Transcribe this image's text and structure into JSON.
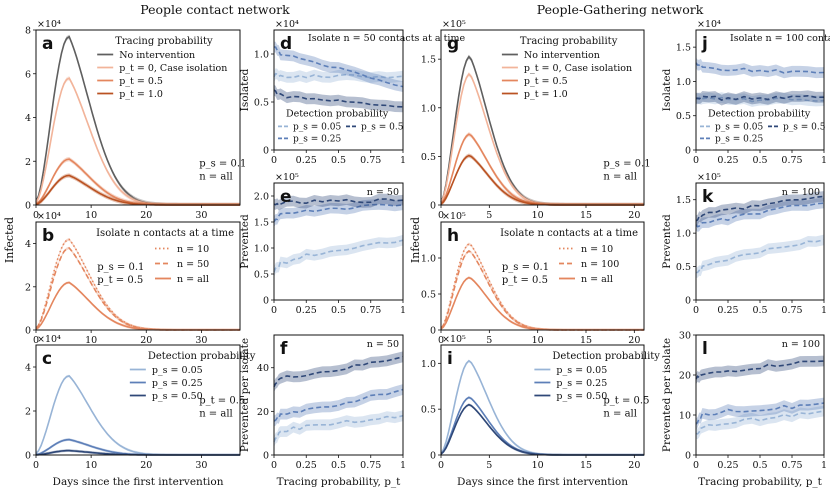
{
  "titles": {
    "left": "People contact network",
    "right": "People-Gathering network"
  },
  "colors": {
    "gray": "#5f5f5f",
    "orange_light": "#f2b49a",
    "orange_mid": "#e4865e",
    "orange_dark": "#ba5222",
    "blue_light": "#98b4d6",
    "blue_mid": "#5d7fb8",
    "blue_dark": "#2f4878"
  },
  "chart_data": [
    {
      "id": "a",
      "type": "line",
      "panel": "a",
      "xlim": [
        0,
        37
      ],
      "ylim": [
        0,
        8
      ],
      "multiplier": "×10⁴",
      "xticks": [
        0,
        10,
        20,
        30
      ],
      "yticks": [
        0,
        2,
        4,
        6,
        8
      ],
      "legend_title": "Tracing probability",
      "annotation": [
        "p_s = 0.1",
        "n = all"
      ],
      "series": [
        {
          "name": "No intervention",
          "color": "gray",
          "peak_x": 6,
          "peak_y": 7.7
        },
        {
          "name": "p_t = 0, Case isolation",
          "color": "orange_light",
          "peak_x": 6,
          "peak_y": 5.8
        },
        {
          "name": "p_t = 0.5",
          "color": "orange_mid",
          "peak_x": 6,
          "peak_y": 2.1
        },
        {
          "name": "p_t = 1.0",
          "color": "orange_dark",
          "peak_x": 6,
          "peak_y": 1.35
        }
      ]
    },
    {
      "id": "b",
      "type": "line",
      "panel": "b",
      "xlim": [
        0,
        37
      ],
      "ylim": [
        0,
        5
      ],
      "multiplier": "×10⁴",
      "xticks": [
        0,
        10,
        20,
        30
      ],
      "yticks": [
        0,
        2,
        4
      ],
      "legend_title": "Isolate n contacts at a time",
      "annotation": [
        "p_s = 0.1",
        "p_t = 0.5"
      ],
      "series": [
        {
          "name": "n = 10",
          "style": "dotted",
          "color": "orange_mid",
          "peak_x": 6,
          "peak_y": 4.2
        },
        {
          "name": "n = 50",
          "style": "dashed",
          "color": "orange_mid",
          "peak_x": 6,
          "peak_y": 3.8
        },
        {
          "name": "n = all",
          "style": "solid",
          "color": "orange_mid",
          "peak_x": 6,
          "peak_y": 2.2
        }
      ]
    },
    {
      "id": "c",
      "type": "line",
      "panel": "c",
      "xlim": [
        0,
        37
      ],
      "ylim": [
        0,
        5
      ],
      "multiplier": "×10⁴",
      "xticks": [
        0,
        10,
        20,
        30
      ],
      "yticks": [
        0,
        2,
        4
      ],
      "xlabel": "Days since the first intervention",
      "legend_title": "Detection probability",
      "annotation": [
        "p_t = 0.5",
        "n = all"
      ],
      "series": [
        {
          "name": "p_s = 0.05",
          "color": "blue_light",
          "peak_x": 6,
          "peak_y": 3.6
        },
        {
          "name": "p_s = 0.25",
          "color": "blue_mid",
          "peak_x": 6,
          "peak_y": 0.7
        },
        {
          "name": "p_s = 0.50",
          "color": "blue_dark",
          "peak_x": 6,
          "peak_y": 0.2
        }
      ]
    },
    {
      "id": "d",
      "type": "line",
      "panel": "d",
      "xlim": [
        0,
        1
      ],
      "ylim": [
        0,
        1.25
      ],
      "multiplier": "×10⁴",
      "xticks": [
        0,
        0.25,
        0.5,
        0.75,
        1
      ],
      "yticks": [
        0,
        0.5,
        1.0
      ],
      "ylabel": "Isolated",
      "title": "Isolate n = 50 contacts at a time",
      "legend_title": "Detection probability",
      "series": [
        {
          "name": "p_s = 0.05",
          "color": "blue_light",
          "x": [
            0,
            0.05,
            0.25,
            0.5,
            0.75,
            1
          ],
          "values": [
            0.78,
            0.77,
            0.77,
            0.77,
            0.77,
            0.77
          ]
        },
        {
          "name": "p_s = 0.25",
          "color": "blue_mid",
          "x": [
            0,
            0.05,
            0.25,
            0.5,
            0.75,
            1
          ],
          "values": [
            1.08,
            1.0,
            0.93,
            0.85,
            0.76,
            0.66
          ]
        },
        {
          "name": "p_s = 0.5",
          "color": "blue_dark",
          "x": [
            0,
            0.05,
            0.25,
            0.5,
            0.75,
            1
          ],
          "values": [
            0.62,
            0.57,
            0.54,
            0.51,
            0.48,
            0.45
          ]
        }
      ]
    },
    {
      "id": "e",
      "type": "line",
      "panel": "e",
      "xlim": [
        0,
        1
      ],
      "ylim": [
        0,
        2.25
      ],
      "multiplier": "×10⁵",
      "xticks": [
        0,
        0.25,
        0.5,
        0.75,
        1
      ],
      "yticks": [
        0,
        0.5,
        1.0,
        1.5,
        2.0
      ],
      "ylabel": "Prevented",
      "annotation": [
        "n = 50"
      ],
      "series": [
        {
          "name": "p_s = 0.05",
          "color": "blue_light",
          "x": [
            0,
            0.05,
            0.25,
            0.5,
            0.75,
            1
          ],
          "values": [
            0.55,
            0.7,
            0.85,
            0.95,
            1.05,
            1.15
          ]
        },
        {
          "name": "p_s = 0.25",
          "color": "blue_mid",
          "x": [
            0,
            0.05,
            0.25,
            0.5,
            0.75,
            1
          ],
          "values": [
            1.5,
            1.65,
            1.72,
            1.76,
            1.8,
            1.83
          ]
        },
        {
          "name": "p_s = 0.5",
          "color": "blue_dark",
          "x": [
            0,
            0.05,
            0.25,
            0.5,
            0.75,
            1
          ],
          "values": [
            1.82,
            1.86,
            1.88,
            1.9,
            1.91,
            1.92
          ]
        }
      ]
    },
    {
      "id": "f",
      "type": "line",
      "panel": "f",
      "xlim": [
        0,
        1
      ],
      "ylim": [
        0,
        55
      ],
      "multiplier": "",
      "xticks": [
        0,
        0.25,
        0.5,
        0.75,
        1
      ],
      "yticks": [
        0,
        20,
        40
      ],
      "ylabel": "Prevented per isolate",
      "xlabel": "Tracing probability, p_t",
      "annotation": [
        "n = 50"
      ],
      "series": [
        {
          "name": "p_s = 0.05",
          "color": "blue_light",
          "x": [
            0,
            0.05,
            0.25,
            0.5,
            0.75,
            1
          ],
          "values": [
            6,
            11,
            13,
            15,
            16,
            18
          ]
        },
        {
          "name": "p_s = 0.25",
          "color": "blue_mid",
          "x": [
            0,
            0.05,
            0.25,
            0.5,
            0.75,
            1
          ],
          "values": [
            15,
            18,
            21,
            23,
            27,
            30
          ]
        },
        {
          "name": "p_s = 0.5",
          "color": "blue_dark",
          "x": [
            0,
            0.05,
            0.25,
            0.5,
            0.75,
            1
          ],
          "values": [
            32,
            35,
            37,
            39,
            42,
            45
          ]
        }
      ]
    },
    {
      "id": "g",
      "type": "line",
      "panel": "g",
      "xlim": [
        0,
        21
      ],
      "ylim": [
        0,
        1.8
      ],
      "multiplier": "×10⁵",
      "xticks": [
        0,
        5,
        10,
        15,
        20
      ],
      "yticks": [
        0,
        0.5,
        1.0,
        1.5
      ],
      "legend_title": "Tracing probability",
      "annotation": [
        "p_s = 0.1",
        "n = all"
      ],
      "series": [
        {
          "name": "No intervention",
          "color": "gray",
          "peak_x": 3,
          "peak_y": 1.53
        },
        {
          "name": "p_t = 0, Case isolation",
          "color": "orange_light",
          "peak_x": 3,
          "peak_y": 1.35
        },
        {
          "name": "p_t = 0.5",
          "color": "orange_mid",
          "peak_x": 3,
          "peak_y": 0.73
        },
        {
          "name": "p_t = 1.0",
          "color": "orange_dark",
          "peak_x": 3,
          "peak_y": 0.51
        }
      ]
    },
    {
      "id": "h",
      "type": "line",
      "panel": "h",
      "xlim": [
        0,
        21
      ],
      "ylim": [
        0,
        1.5
      ],
      "multiplier": "×10⁵",
      "xticks": [
        0,
        5,
        10,
        15,
        20
      ],
      "yticks": [
        0,
        0.5,
        1.0
      ],
      "legend_title": "Isolate n contacts at a time",
      "annotation": [
        "p_s = 0.1",
        "p_t = 0.5"
      ],
      "series": [
        {
          "name": "n = 10",
          "style": "dotted",
          "color": "orange_mid",
          "peak_x": 3,
          "peak_y": 1.2
        },
        {
          "name": "n = 100",
          "style": "dashed",
          "color": "orange_mid",
          "peak_x": 3,
          "peak_y": 1.1
        },
        {
          "name": "n = all",
          "style": "solid",
          "color": "orange_mid",
          "peak_x": 3,
          "peak_y": 0.73
        }
      ]
    },
    {
      "id": "i",
      "type": "line",
      "panel": "i",
      "xlim": [
        0,
        21
      ],
      "ylim": [
        0,
        1.2
      ],
      "multiplier": "×10⁵",
      "xticks": [
        0,
        5,
        10,
        15,
        20
      ],
      "yticks": [
        0,
        0.5,
        1.0
      ],
      "xlabel": "Days since the first intervention",
      "legend_title": "Detection probability",
      "annotation": [
        "p_t = 0.5",
        "n = all"
      ],
      "series": [
        {
          "name": "p_s = 0.05",
          "color": "blue_light",
          "peak_x": 3,
          "peak_y": 1.03
        },
        {
          "name": "p_s = 0.25",
          "color": "blue_mid",
          "peak_x": 3,
          "peak_y": 0.63
        },
        {
          "name": "p_s = 0.50",
          "color": "blue_dark",
          "peak_x": 3,
          "peak_y": 0.55
        }
      ]
    },
    {
      "id": "j",
      "type": "line",
      "panel": "j",
      "xlim": [
        0,
        1
      ],
      "ylim": [
        0,
        1.75
      ],
      "multiplier": "×10⁴",
      "xticks": [
        0,
        0.25,
        0.5,
        0.75,
        1
      ],
      "yticks": [
        0,
        0.5,
        1.0,
        1.5
      ],
      "ylabel": "Isolated",
      "title": "Isolate n = 100 contacts at a time",
      "legend_title": "Detection probability",
      "series": [
        {
          "name": "p_s = 0.05",
          "color": "blue_light",
          "x": [
            0,
            0.05,
            0.25,
            0.5,
            0.75,
            1
          ],
          "values": [
            0.75,
            0.74,
            0.74,
            0.73,
            0.73,
            0.72
          ]
        },
        {
          "name": "p_s = 0.25",
          "color": "blue_mid",
          "x": [
            0,
            0.05,
            0.25,
            0.5,
            0.75,
            1
          ],
          "values": [
            1.26,
            1.22,
            1.18,
            1.16,
            1.14,
            1.13
          ]
        },
        {
          "name": "p_s = 0.5",
          "color": "blue_dark",
          "x": [
            0,
            0.05,
            0.25,
            0.5,
            0.75,
            1
          ],
          "values": [
            0.78,
            0.76,
            0.75,
            0.76,
            0.77,
            0.77
          ]
        }
      ]
    },
    {
      "id": "k",
      "type": "line",
      "panel": "k",
      "xlim": [
        0,
        1
      ],
      "ylim": [
        0,
        1.75
      ],
      "multiplier": "×10⁵",
      "xticks": [
        0,
        0.25,
        0.5,
        0.75,
        1
      ],
      "yticks": [
        0,
        0.5,
        1.0,
        1.5
      ],
      "ylabel": "Prevented",
      "annotation": [
        "n = 100"
      ],
      "series": [
        {
          "name": "p_s = 0.05",
          "color": "blue_light",
          "x": [
            0,
            0.05,
            0.25,
            0.5,
            0.75,
            1
          ],
          "values": [
            0.4,
            0.48,
            0.6,
            0.72,
            0.82,
            0.9
          ]
        },
        {
          "name": "p_s = 0.25",
          "color": "blue_mid",
          "x": [
            0,
            0.05,
            0.25,
            0.5,
            0.75,
            1
          ],
          "values": [
            1.1,
            1.15,
            1.22,
            1.3,
            1.42,
            1.45
          ]
        },
        {
          "name": "p_s = 0.5",
          "color": "blue_dark",
          "x": [
            0,
            0.05,
            0.25,
            0.5,
            0.75,
            1
          ],
          "values": [
            1.2,
            1.28,
            1.35,
            1.42,
            1.5,
            1.55
          ]
        }
      ]
    },
    {
      "id": "l",
      "type": "line",
      "panel": "l",
      "xlim": [
        0,
        1
      ],
      "ylim": [
        0,
        30
      ],
      "multiplier": "",
      "xticks": [
        0,
        0.25,
        0.5,
        0.75,
        1
      ],
      "yticks": [
        0,
        10,
        20,
        30
      ],
      "ylabel": "Prevented per isolate",
      "xlabel": "Tracing probability, p_t",
      "annotation": [
        "n = 100"
      ],
      "series": [
        {
          "name": "p_s = 0.05",
          "color": "blue_light",
          "x": [
            0,
            0.05,
            0.25,
            0.5,
            0.75,
            1
          ],
          "values": [
            5,
            7,
            8,
            9,
            10,
            11
          ]
        },
        {
          "name": "p_s = 0.25",
          "color": "blue_mid",
          "x": [
            0,
            0.05,
            0.25,
            0.5,
            0.75,
            1
          ],
          "values": [
            8,
            10,
            11,
            11.5,
            12,
            13
          ]
        },
        {
          "name": "p_s = 0.5",
          "color": "blue_dark",
          "x": [
            0,
            0.05,
            0.25,
            0.5,
            0.75,
            1
          ],
          "values": [
            19,
            20,
            21,
            22,
            23,
            23.5
          ]
        }
      ]
    }
  ],
  "ylabels": {
    "infected_left": "Infected",
    "infected_right": "Infected"
  }
}
